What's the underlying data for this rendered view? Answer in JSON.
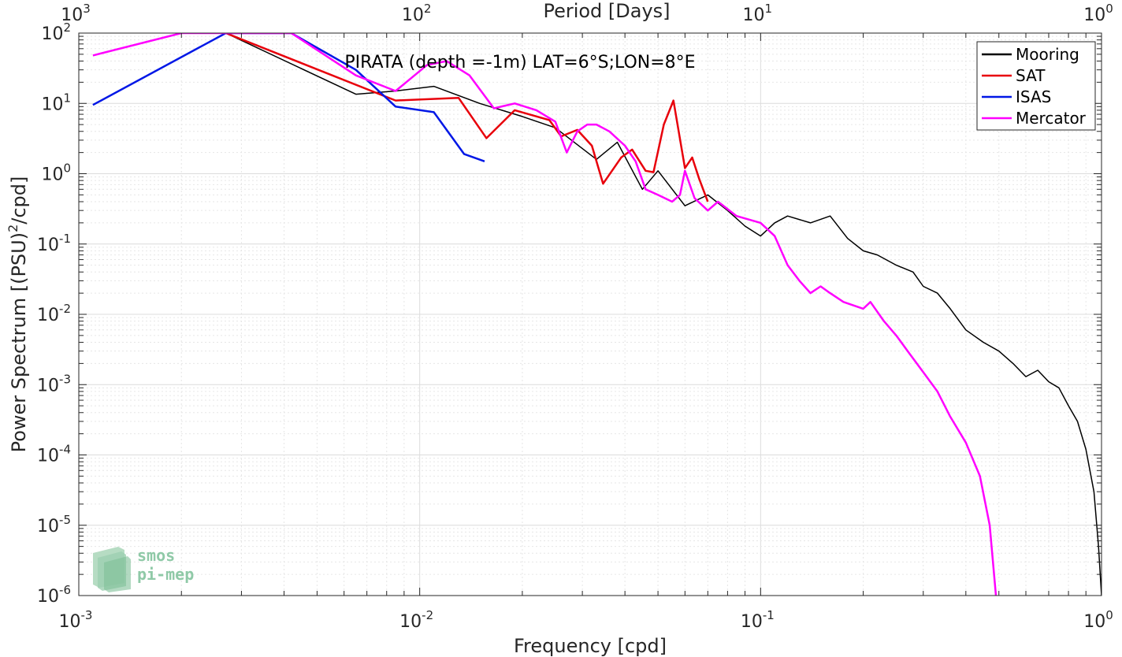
{
  "chart_data": {
    "type": "line",
    "title": "PIRATA (depth =-1m) LAT=6°S;LON=8°E",
    "xlabel": "Frequency [cpd]",
    "ylabel_main": "Power Spectrum [(PSU)",
    "ylabel_sup": "2",
    "ylabel_tail": "/cpd]",
    "top_xlabel": "Period [Days]",
    "x_scale": "log",
    "y_scale": "log",
    "xlim": [
      0.001,
      1
    ],
    "ylim": [
      1e-06,
      100
    ],
    "grid": true,
    "legend_position": "top-right",
    "x_ticks": [
      {
        "base": "10",
        "exp": "-3",
        "value": 0.001
      },
      {
        "base": "10",
        "exp": "-2",
        "value": 0.01
      },
      {
        "base": "10",
        "exp": "-1",
        "value": 0.1
      },
      {
        "base": "10",
        "exp": "0",
        "value": 1
      }
    ],
    "top_ticks": [
      {
        "base": "10",
        "exp": "3",
        "value": 0.001
      },
      {
        "base": "10",
        "exp": "2",
        "value": 0.01
      },
      {
        "base": "10",
        "exp": "1",
        "value": 0.1
      },
      {
        "base": "10",
        "exp": "0",
        "value": 1
      }
    ],
    "y_ticks": [
      {
        "base": "10",
        "exp": "2",
        "value": 100
      },
      {
        "base": "10",
        "exp": "1",
        "value": 10
      },
      {
        "base": "10",
        "exp": "0",
        "value": 1
      },
      {
        "base": "10",
        "exp": "-1",
        "value": 0.1
      },
      {
        "base": "10",
        "exp": "-2",
        "value": 0.01
      },
      {
        "base": "10",
        "exp": "-3",
        "value": 0.001
      },
      {
        "base": "10",
        "exp": "-4",
        "value": 0.0001
      },
      {
        "base": "10",
        "exp": "-5",
        "value": 1e-05
      },
      {
        "base": "10",
        "exp": "-6",
        "value": 1e-06
      }
    ],
    "series": [
      {
        "name": "Mooring",
        "color": "#000000",
        "width": 1.5,
        "points": [
          [
            0.0027,
            100
          ],
          [
            0.0065,
            13.5
          ],
          [
            0.0085,
            15
          ],
          [
            0.011,
            17.5
          ],
          [
            0.015,
            10
          ],
          [
            0.02,
            6.5
          ],
          [
            0.025,
            4.5
          ],
          [
            0.033,
            1.6
          ],
          [
            0.038,
            2.8
          ],
          [
            0.045,
            0.6
          ],
          [
            0.05,
            1.1
          ],
          [
            0.06,
            0.35
          ],
          [
            0.07,
            0.5
          ],
          [
            0.08,
            0.3
          ],
          [
            0.09,
            0.18
          ],
          [
            0.1,
            0.13
          ],
          [
            0.11,
            0.2
          ],
          [
            0.12,
            0.25
          ],
          [
            0.14,
            0.2
          ],
          [
            0.16,
            0.25
          ],
          [
            0.18,
            0.12
          ],
          [
            0.2,
            0.08
          ],
          [
            0.22,
            0.07
          ],
          [
            0.25,
            0.05
          ],
          [
            0.28,
            0.04
          ],
          [
            0.3,
            0.025
          ],
          [
            0.33,
            0.02
          ],
          [
            0.36,
            0.012
          ],
          [
            0.4,
            0.006
          ],
          [
            0.45,
            0.004
          ],
          [
            0.5,
            0.003
          ],
          [
            0.55,
            0.002
          ],
          [
            0.6,
            0.0013
          ],
          [
            0.65,
            0.0016
          ],
          [
            0.7,
            0.0011
          ],
          [
            0.75,
            0.0009
          ],
          [
            0.8,
            0.0005
          ],
          [
            0.85,
            0.0003
          ],
          [
            0.9,
            0.00012
          ],
          [
            0.95,
            3e-05
          ],
          [
            0.98,
            5e-06
          ],
          [
            1.0,
            1e-06
          ]
        ]
      },
      {
        "name": "SAT",
        "color": "#e8000b",
        "width": 2.5,
        "points": [
          [
            0.0027,
            100
          ],
          [
            0.0085,
            11
          ],
          [
            0.013,
            12
          ],
          [
            0.0157,
            3.2
          ],
          [
            0.019,
            8
          ],
          [
            0.024,
            5.8
          ],
          [
            0.026,
            3.4
          ],
          [
            0.029,
            4.2
          ],
          [
            0.032,
            2.5
          ],
          [
            0.0345,
            0.72
          ],
          [
            0.039,
            1.7
          ],
          [
            0.042,
            2.2
          ],
          [
            0.046,
            1.1
          ],
          [
            0.0485,
            1.05
          ],
          [
            0.052,
            5
          ],
          [
            0.0555,
            11
          ],
          [
            0.06,
            1.2
          ],
          [
            0.063,
            1.7
          ],
          [
            0.066,
            0.85
          ],
          [
            0.07,
            0.4
          ]
        ]
      },
      {
        "name": "ISAS",
        "color": "#0017e6",
        "width": 2.5,
        "points": [
          [
            0.0011,
            9.5
          ],
          [
            0.0027,
            100
          ],
          [
            0.0042,
            100
          ],
          [
            0.0065,
            30
          ],
          [
            0.0085,
            9
          ],
          [
            0.011,
            7.5
          ],
          [
            0.0135,
            1.9
          ],
          [
            0.0155,
            1.5
          ]
        ]
      },
      {
        "name": "Mercator",
        "color": "#ff00ff",
        "width": 2.5,
        "points": [
          [
            0.0011,
            48
          ],
          [
            0.002,
            100
          ],
          [
            0.0042,
            100
          ],
          [
            0.0065,
            25
          ],
          [
            0.0085,
            15
          ],
          [
            0.0105,
            35
          ],
          [
            0.012,
            40
          ],
          [
            0.014,
            25
          ],
          [
            0.0165,
            8.5
          ],
          [
            0.019,
            10
          ],
          [
            0.022,
            8
          ],
          [
            0.025,
            5.5
          ],
          [
            0.027,
            2
          ],
          [
            0.029,
            4
          ],
          [
            0.031,
            5
          ],
          [
            0.033,
            5
          ],
          [
            0.036,
            4
          ],
          [
            0.04,
            2.5
          ],
          [
            0.043,
            1.5
          ],
          [
            0.046,
            0.6
          ],
          [
            0.05,
            0.5
          ],
          [
            0.055,
            0.4
          ],
          [
            0.058,
            0.5
          ],
          [
            0.06,
            1.1
          ],
          [
            0.064,
            0.45
          ],
          [
            0.07,
            0.3
          ],
          [
            0.075,
            0.4
          ],
          [
            0.085,
            0.25
          ],
          [
            0.1,
            0.2
          ],
          [
            0.11,
            0.13
          ],
          [
            0.12,
            0.05
          ],
          [
            0.13,
            0.03
          ],
          [
            0.14,
            0.02
          ],
          [
            0.15,
            0.025
          ],
          [
            0.16,
            0.02
          ],
          [
            0.175,
            0.015
          ],
          [
            0.2,
            0.012
          ],
          [
            0.21,
            0.015
          ],
          [
            0.23,
            0.008
          ],
          [
            0.25,
            0.005
          ],
          [
            0.27,
            0.003
          ],
          [
            0.3,
            0.0015
          ],
          [
            0.33,
            0.0008
          ],
          [
            0.36,
            0.00035
          ],
          [
            0.4,
            0.00015
          ],
          [
            0.44,
            5e-05
          ],
          [
            0.47,
            1e-05
          ],
          [
            0.49,
            1e-06
          ]
        ]
      }
    ]
  },
  "logo": {
    "line1": "smos",
    "line2": "pi-mep"
  }
}
